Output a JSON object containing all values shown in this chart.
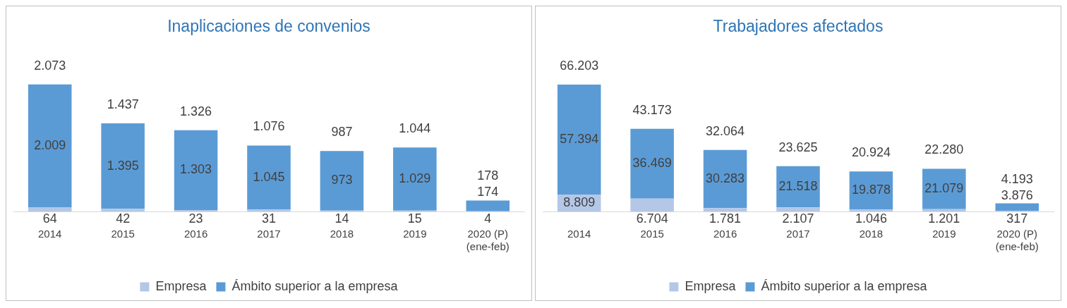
{
  "chart_data": [
    {
      "type": "bar",
      "stacked": true,
      "title": "Inaplicaciones de convenios",
      "categories": [
        "2014",
        "2015",
        "2016",
        "2017",
        "2018",
        "2019",
        "2020 (P)\n(ene-feb)"
      ],
      "legend": "bottom",
      "grid": false,
      "totals": [
        "2.073",
        "1.437",
        "1.326",
        "1.076",
        "987",
        "1.044",
        "178"
      ],
      "series": [
        {
          "name": "Empresa",
          "color": "#b4c7e7",
          "values": [
            64,
            42,
            23,
            31,
            14,
            15,
            4
          ],
          "value_labels": [
            "64",
            "42",
            "23",
            "31",
            "14",
            "15",
            "4"
          ]
        },
        {
          "name": "Ámbito superior a la empresa",
          "color": "#5b9bd5",
          "values": [
            2009,
            1395,
            1303,
            1045,
            973,
            1029,
            174
          ],
          "value_labels": [
            "2.009",
            "1.395",
            "1.303",
            "1.045",
            "973",
            "1.029",
            "174"
          ]
        }
      ]
    },
    {
      "type": "bar",
      "stacked": true,
      "title": "Trabajadores afectados",
      "categories": [
        "2014",
        "2015",
        "2016",
        "2017",
        "2018",
        "2019",
        "2020 (P)\n(ene-feb)"
      ],
      "legend": "bottom",
      "grid": false,
      "totals": [
        "66.203",
        "43.173",
        "32.064",
        "23.625",
        "20.924",
        "22.280",
        "4.193"
      ],
      "series": [
        {
          "name": "Empresa",
          "color": "#b4c7e7",
          "values": [
            8809,
            6704,
            1781,
            2107,
            1046,
            1201,
            317
          ],
          "value_labels": [
            "8.809",
            "6.704",
            "1.781",
            "2.107",
            "1.046",
            "1.201",
            "317"
          ]
        },
        {
          "name": "Ámbito superior a la empresa",
          "color": "#5b9bd5",
          "values": [
            57394,
            36469,
            30283,
            21518,
            19878,
            21079,
            3876
          ],
          "value_labels": [
            "57.394",
            "36.469",
            "30.283",
            "21.518",
            "19.878",
            "21.079",
            "3.876"
          ]
        }
      ]
    }
  ]
}
